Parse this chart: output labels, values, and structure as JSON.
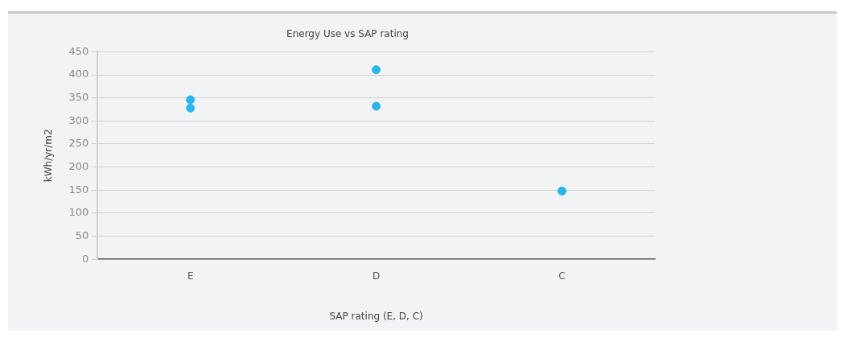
{
  "chart_data": {
    "type": "scatter",
    "title": "Energy Use vs SAP rating",
    "xlabel": "SAP rating (E, D, C)",
    "ylabel": "kWh/yr/m2",
    "categories": [
      "E",
      "D",
      "C"
    ],
    "series": [
      {
        "color": "#29b5e8",
        "x": [
          "E",
          "E",
          "D",
          "D",
          "C"
        ],
        "values": [
          346,
          328,
          411,
          332,
          148
        ]
      }
    ],
    "ylim": [
      0,
      450
    ],
    "yticks": [
      0,
      50,
      100,
      150,
      200,
      250,
      300,
      350,
      400,
      450
    ],
    "grid": "y",
    "legend": false,
    "marker": "circle"
  }
}
